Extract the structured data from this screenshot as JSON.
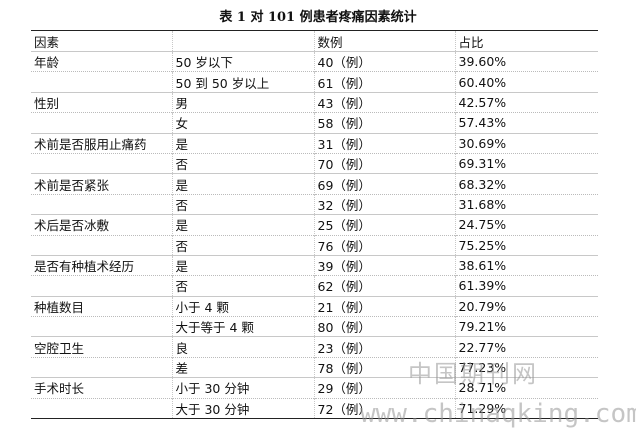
{
  "title": "表 1 对 101 例患者疼痛因素统计",
  "columns": [
    "因素",
    "",
    "数例",
    "占比"
  ],
  "groups": [
    {
      "factor": "年龄",
      "rows": [
        {
          "sub": "50 岁以下",
          "count": "40（例）",
          "pct": "39.60%"
        },
        {
          "sub": "50 到 50 岁以上",
          "count": "61（例）",
          "pct": "60.40%"
        }
      ]
    },
    {
      "factor": "性别",
      "rows": [
        {
          "sub": "男",
          "count": "43（例）",
          "pct": "42.57%"
        },
        {
          "sub": "女",
          "count": "58（例）",
          "pct": "57.43%"
        }
      ]
    },
    {
      "factor": "术前是否服用止痛药",
      "rows": [
        {
          "sub": "是",
          "count": "31（例）",
          "pct": "30.69%"
        },
        {
          "sub": "否",
          "count": "70（例）",
          "pct": "69.31%"
        }
      ]
    },
    {
      "factor": "术前是否紧张",
      "rows": [
        {
          "sub": "是",
          "count": "69（例）",
          "pct": "68.32%"
        },
        {
          "sub": "否",
          "count": "32（例）",
          "pct": "31.68%"
        }
      ]
    },
    {
      "factor": "术后是否冰敷",
      "rows": [
        {
          "sub": "是",
          "count": "25（例）",
          "pct": "24.75%"
        },
        {
          "sub": "否",
          "count": "76（例）",
          "pct": "75.25%"
        }
      ]
    },
    {
      "factor": "是否有种植术经历",
      "rows": [
        {
          "sub": "是",
          "count": "39（例）",
          "pct": "38.61%"
        },
        {
          "sub": "否",
          "count": "62（例）",
          "pct": "61.39%"
        }
      ]
    },
    {
      "factor": "种植数目",
      "rows": [
        {
          "sub": "小于 4 颗",
          "count": "21（例）",
          "pct": "20.79%"
        },
        {
          "sub": "大于等于 4 颗",
          "count": "80（例）",
          "pct": "79.21%"
        }
      ]
    },
    {
      "factor": "空腔卫生",
      "rows": [
        {
          "sub": "良",
          "count": "23（例）",
          "pct": "22.77%"
        },
        {
          "sub": "差",
          "count": "78（例）",
          "pct": "77.23%"
        }
      ]
    },
    {
      "factor": "手术时长",
      "rows": [
        {
          "sub": "小于 30 分钟",
          "count": "29（例）",
          "pct": "28.71%"
        },
        {
          "sub": "大于 30 分钟",
          "count": "72（例）",
          "pct": "71.29%"
        }
      ]
    }
  ],
  "watermark": {
    "line1": "中国期刊网",
    "line2": "www.chinaqking.com"
  }
}
